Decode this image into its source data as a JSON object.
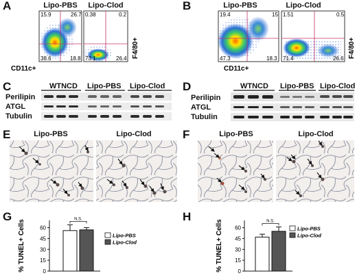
{
  "panels": {
    "A": {
      "letter": "A",
      "flow_plots": [
        {
          "title": "Lipo-PBS",
          "q_tl": "15.9",
          "q_tr": "26.7",
          "q_bl": "38.6",
          "q_br": "18.8"
        },
        {
          "title": "Lipo-Clod",
          "q_tl": "0.38",
          "q_tr": "0.2",
          "q_bl": "73.1",
          "q_br": "26.4"
        }
      ],
      "x_axis": "CD11c+",
      "y_axis": "F4/80+"
    },
    "B": {
      "letter": "B",
      "flow_plots": [
        {
          "title": "Lipo-PBS",
          "q_tl": "19.4",
          "q_tr": "15",
          "q_bl": "47.3",
          "q_br": "18.3"
        },
        {
          "title": "Lipo-Clod",
          "q_tl": "1.51",
          "q_tr": "0.5",
          "q_bl": "71.4",
          "q_br": "26.6"
        }
      ],
      "x_axis": "CD11c+",
      "y_axis": "F4/80+"
    },
    "C": {
      "letter": "C",
      "groups": [
        "WTNCD",
        "Lipo-PBS",
        "Lipo-Clod"
      ],
      "rows": [
        "Perilipin",
        "ATGL",
        "Tubulin"
      ]
    },
    "D": {
      "letter": "D",
      "groups": [
        "WTNCD",
        "Lipo-PBS",
        "Lipo-Clod"
      ],
      "rows": [
        "Perilipin",
        "ATGL",
        "Tubulin"
      ]
    },
    "E": {
      "letter": "E",
      "titles": [
        "Lipo-PBS",
        "Lipo-Clod"
      ]
    },
    "F": {
      "letter": "F",
      "titles": [
        "Lipo-PBS",
        "Lipo-Clod"
      ]
    },
    "G": {
      "letter": "G",
      "ns": "N.S."
    },
    "H": {
      "letter": "H",
      "ns": "N.S."
    }
  },
  "chart_data": [
    {
      "type": "bar",
      "panel": "G",
      "categories": [
        "Lipo-PBS",
        "Lipo-Clod"
      ],
      "values": [
        56,
        57
      ],
      "errors": [
        8,
        3
      ],
      "colors": [
        "#ffffff",
        "#555555"
      ],
      "ylabel": "% TUNEL+ Cells",
      "yticks": [
        "0",
        "15",
        "30",
        "45",
        "60"
      ],
      "ylim": [
        0,
        70
      ],
      "legend": [
        "Lipo-PBS",
        "Lipo-Clod"
      ],
      "annotation": "N.S."
    },
    {
      "type": "bar",
      "panel": "H",
      "categories": [
        "Lipo-PBS",
        "Lipo-Clod"
      ],
      "values": [
        47,
        55
      ],
      "errors": [
        4,
        6
      ],
      "colors": [
        "#ffffff",
        "#555555"
      ],
      "ylabel": "% TUNEL+ Cells",
      "yticks": [
        "0",
        "15",
        "30",
        "45",
        "60"
      ],
      "ylim": [
        0,
        70
      ],
      "legend": [
        "Lipo-PBS",
        "Lipo-Clod"
      ],
      "annotation": "N.S."
    }
  ]
}
